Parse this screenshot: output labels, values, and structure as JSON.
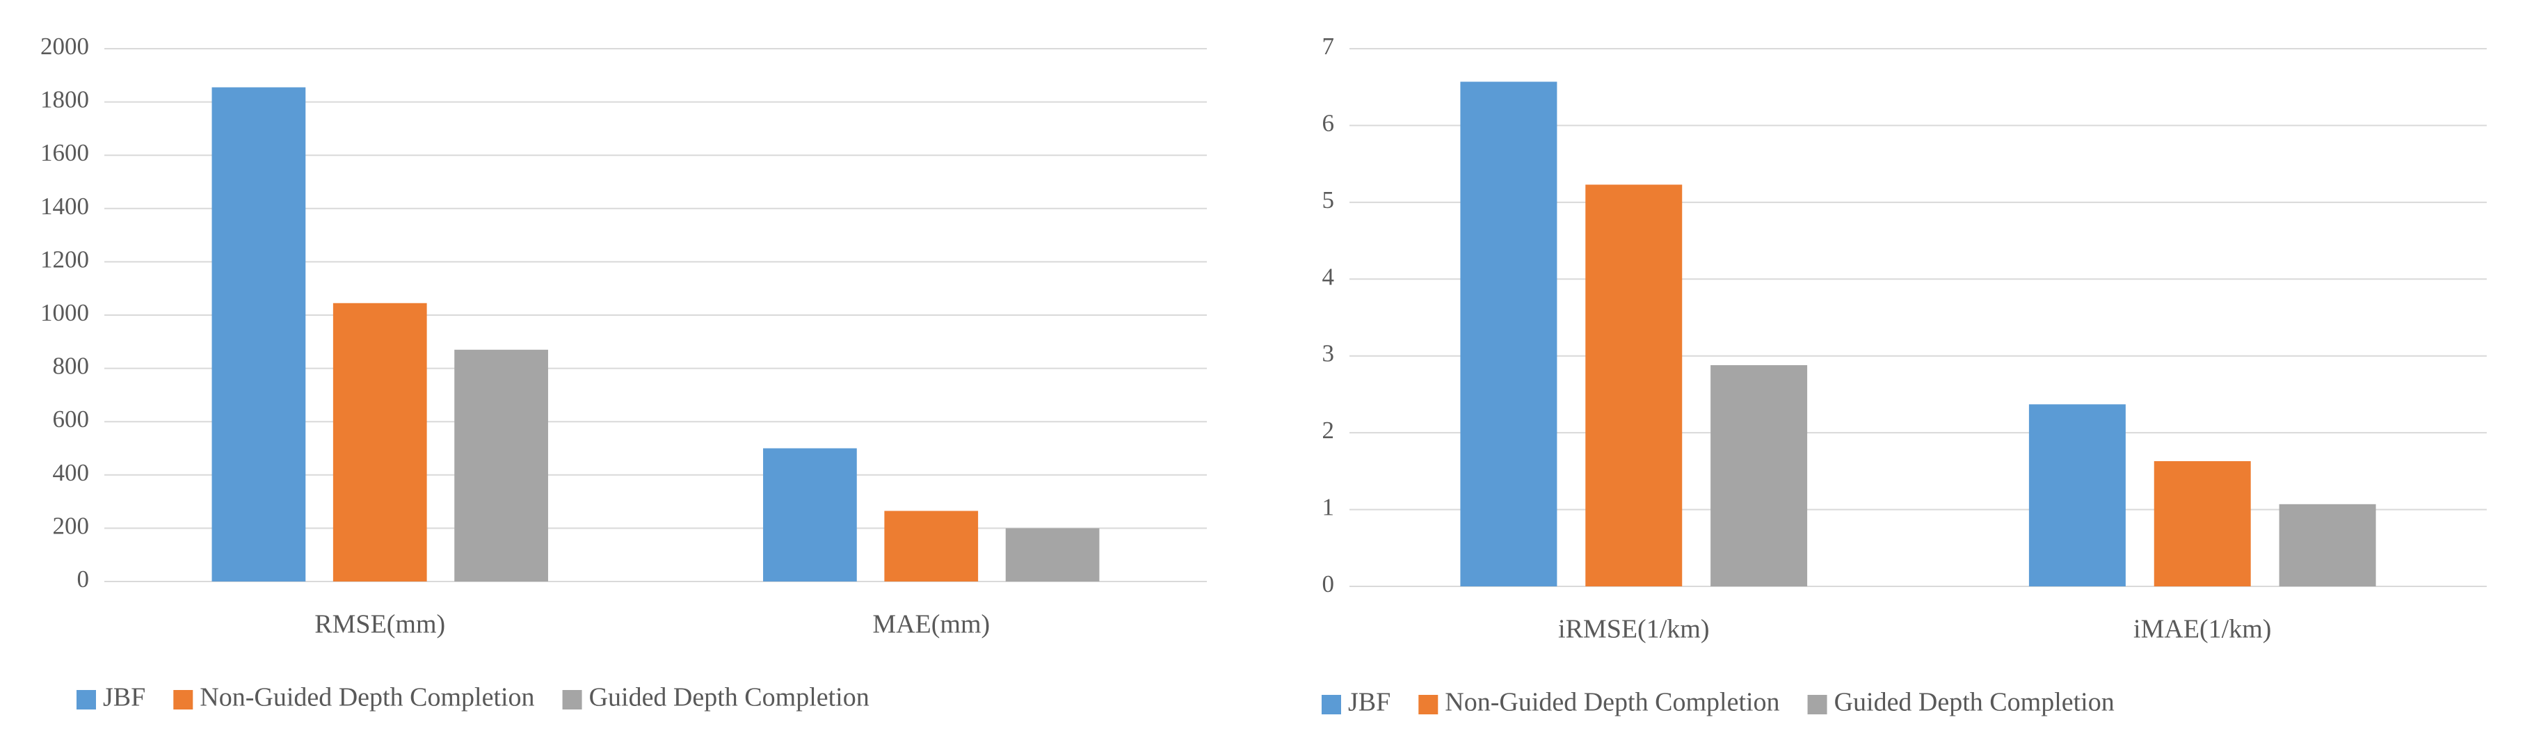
{
  "chart_data": [
    {
      "type": "bar",
      "categories": [
        "RMSE(mm)",
        "MAE(mm)"
      ],
      "series": [
        {
          "name": "JBF",
          "color": "#5b9bd5",
          "values": [
            1855,
            500
          ]
        },
        {
          "name": "Non-Guided Depth Completion",
          "color": "#ed7d31",
          "values": [
            1045,
            265
          ]
        },
        {
          "name": "Guided Depth Completion",
          "color": "#a5a5a5",
          "values": [
            870,
            200
          ]
        }
      ],
      "ylim": [
        0,
        2000
      ],
      "yticks": [
        0,
        200,
        400,
        600,
        800,
        1000,
        1200,
        1400,
        1600,
        1800,
        2000
      ],
      "grid": true,
      "legend": "bottom"
    },
    {
      "type": "bar",
      "categories": [
        "iRMSE(1/km)",
        "iMAE(1/km)"
      ],
      "series": [
        {
          "name": "JBF",
          "color": "#5b9bd5",
          "values": [
            6.57,
            2.37
          ]
        },
        {
          "name": "Non-Guided Depth Completion",
          "color": "#ed7d31",
          "values": [
            5.23,
            1.63
          ]
        },
        {
          "name": "Guided Depth Completion",
          "color": "#a5a5a5",
          "values": [
            2.88,
            1.07
          ]
        }
      ],
      "ylim": [
        0,
        7
      ],
      "yticks": [
        0,
        1,
        2,
        3,
        4,
        5,
        6,
        7
      ],
      "grid": true,
      "legend": "bottom"
    }
  ]
}
